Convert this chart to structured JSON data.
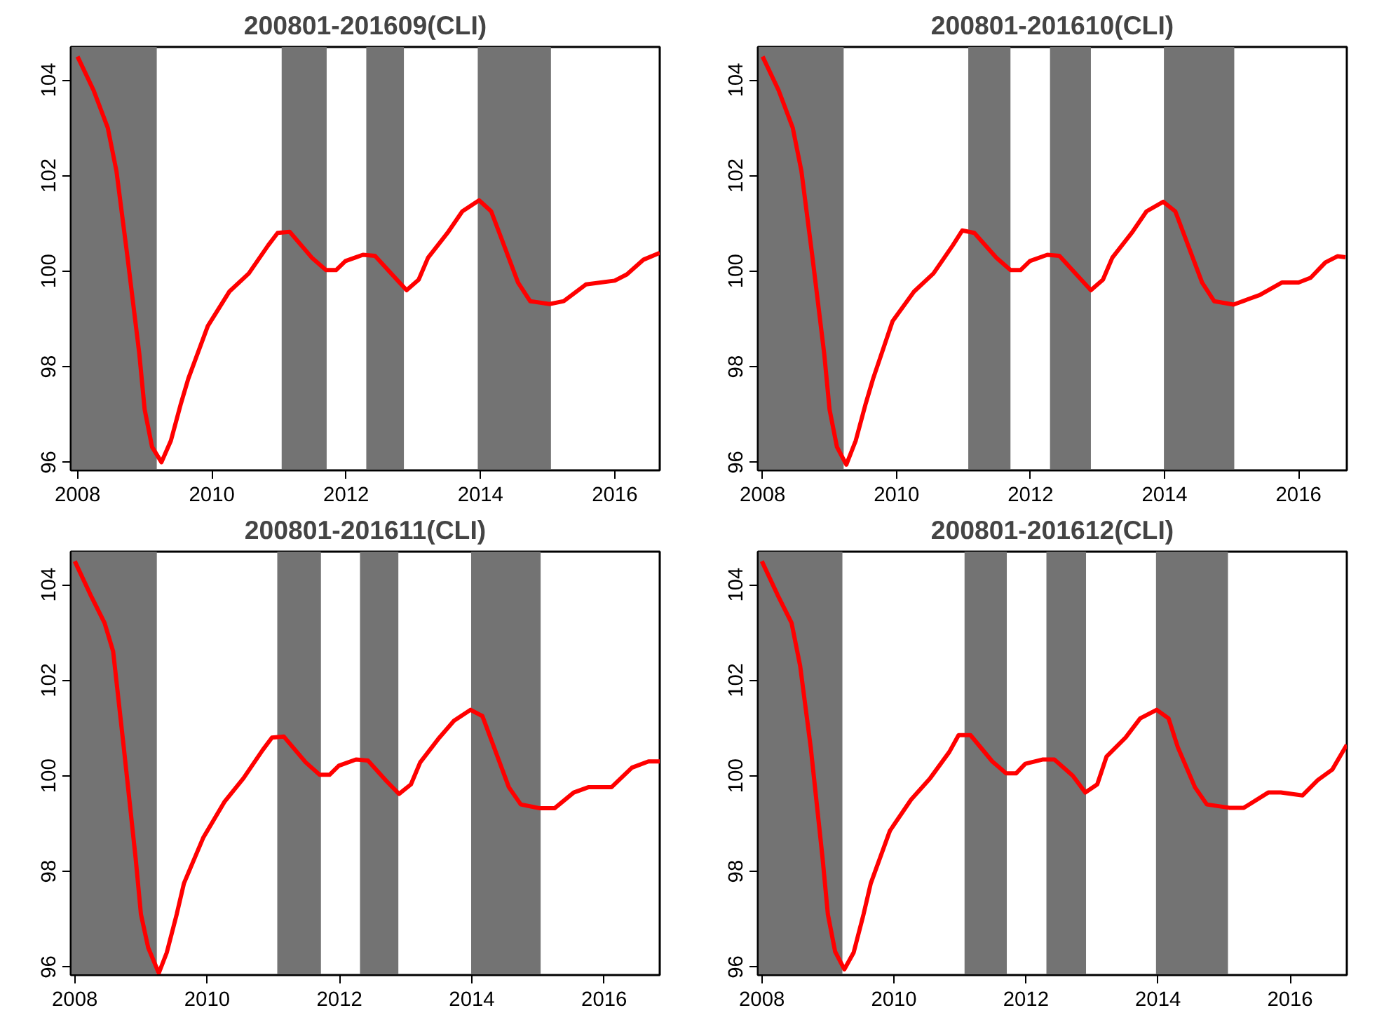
{
  "chart_data": [
    {
      "type": "line",
      "title": "200801-201609(CLI)",
      "xlim": [
        2007.9,
        2016.67
      ],
      "ylim": [
        95.83,
        104.69
      ],
      "xticks": [
        2008,
        2010,
        2012,
        2014,
        2016
      ],
      "yticks": [
        96,
        98,
        100,
        102,
        104
      ],
      "grid": false,
      "line_style": "solid",
      "bands": [
        {
          "axis": "x",
          "from": 2007.9,
          "to": 2009.18,
          "color": "#737373"
        },
        {
          "axis": "x",
          "from": 2011.04,
          "to": 2011.71,
          "color": "#737373"
        },
        {
          "axis": "x",
          "from": 2012.3,
          "to": 2012.86,
          "color": "#737373"
        },
        {
          "axis": "x",
          "from": 2013.96,
          "to": 2015.05,
          "color": "#737373"
        }
      ],
      "series": [
        {
          "color": "#ff0000",
          "x": [
            2008.0,
            2008.24,
            2008.45,
            2008.58,
            2008.74,
            2008.92,
            2009.0,
            2009.11,
            2009.25,
            2009.39,
            2009.54,
            2009.65,
            2009.94,
            2010.26,
            2010.55,
            2010.84,
            2010.98,
            2011.16,
            2011.49,
            2011.7,
            2011.85,
            2011.99,
            2012.25,
            2012.43,
            2012.71,
            2012.9,
            2013.08,
            2013.22,
            2013.51,
            2013.73,
            2013.98,
            2014.16,
            2014.3,
            2014.56,
            2014.74,
            2015.03,
            2015.24,
            2015.57,
            2016.0,
            2016.18,
            2016.43,
            2016.67
          ],
          "values": [
            104.49,
            103.78,
            103.0,
            102.09,
            100.34,
            98.27,
            97.1,
            96.32,
            96.0,
            96.45,
            97.23,
            97.75,
            98.85,
            99.57,
            99.95,
            100.54,
            100.8,
            100.82,
            100.28,
            100.02,
            100.02,
            100.21,
            100.34,
            100.32,
            99.89,
            99.6,
            99.82,
            100.28,
            100.8,
            101.25,
            101.48,
            101.25,
            100.73,
            99.76,
            99.37,
            99.31,
            99.37,
            99.72,
            99.8,
            99.93,
            100.24,
            100.38
          ]
        }
      ]
    },
    {
      "type": "line",
      "title": "200801-201610(CLI)",
      "xlim": [
        2007.93,
        2016.72
      ],
      "ylim": [
        95.83,
        104.69
      ],
      "xticks": [
        2008,
        2010,
        2012,
        2014,
        2016
      ],
      "yticks": [
        96,
        98,
        100,
        102,
        104
      ],
      "grid": false,
      "line_style": "solid",
      "bands": [
        {
          "axis": "x",
          "from": 2007.93,
          "to": 2009.21,
          "color": "#737373"
        },
        {
          "axis": "x",
          "from": 2011.07,
          "to": 2011.7,
          "color": "#737373"
        },
        {
          "axis": "x",
          "from": 2012.29,
          "to": 2012.9,
          "color": "#737373"
        },
        {
          "axis": "x",
          "from": 2013.99,
          "to": 2015.04,
          "color": "#737373"
        }
      ],
      "series": [
        {
          "color": "#ff0000",
          "x": [
            2008.0,
            2008.24,
            2008.45,
            2008.58,
            2008.74,
            2008.92,
            2009.0,
            2009.11,
            2009.25,
            2009.39,
            2009.54,
            2009.65,
            2009.94,
            2010.26,
            2010.55,
            2010.84,
            2010.98,
            2011.16,
            2011.49,
            2011.7,
            2011.85,
            2011.99,
            2012.25,
            2012.43,
            2012.71,
            2012.9,
            2013.08,
            2013.22,
            2013.51,
            2013.73,
            2013.98,
            2014.16,
            2014.3,
            2014.56,
            2014.74,
            2015.03,
            2015.42,
            2015.75,
            2016.0,
            2016.18,
            2016.4,
            2016.58,
            2016.7
          ],
          "values": [
            104.49,
            103.78,
            103.0,
            102.09,
            100.34,
            98.27,
            97.1,
            96.32,
            95.95,
            96.45,
            97.23,
            97.75,
            98.95,
            99.57,
            99.95,
            100.54,
            100.85,
            100.8,
            100.28,
            100.02,
            100.02,
            100.21,
            100.34,
            100.32,
            99.89,
            99.6,
            99.82,
            100.28,
            100.8,
            101.25,
            101.45,
            101.25,
            100.73,
            99.76,
            99.37,
            99.3,
            99.5,
            99.76,
            99.76,
            99.86,
            100.18,
            100.31,
            100.29
          ]
        }
      ]
    },
    {
      "type": "line",
      "title": "200801-201611(CLI)",
      "xlim": [
        2007.94,
        2016.84
      ],
      "ylim": [
        95.83,
        104.69
      ],
      "xticks": [
        2008,
        2010,
        2012,
        2014,
        2016
      ],
      "yticks": [
        96,
        98,
        100,
        102,
        104
      ],
      "grid": false,
      "line_style": "solid",
      "bands": [
        {
          "axis": "x",
          "from": 2007.94,
          "to": 2009.24,
          "color": "#737373"
        },
        {
          "axis": "x",
          "from": 2011.06,
          "to": 2011.72,
          "color": "#737373"
        },
        {
          "axis": "x",
          "from": 2012.31,
          "to": 2012.89,
          "color": "#737373"
        },
        {
          "axis": "x",
          "from": 2013.99,
          "to": 2015.04,
          "color": "#737373"
        }
      ],
      "series": [
        {
          "color": "#ff0000",
          "x": [
            2008.0,
            2008.24,
            2008.45,
            2008.58,
            2008.74,
            2008.92,
            2009.0,
            2009.11,
            2009.27,
            2009.39,
            2009.54,
            2009.65,
            2009.94,
            2010.26,
            2010.55,
            2010.84,
            2010.98,
            2011.16,
            2011.49,
            2011.7,
            2011.85,
            2011.99,
            2012.25,
            2012.43,
            2012.71,
            2012.9,
            2013.08,
            2013.22,
            2013.51,
            2013.73,
            2013.98,
            2014.16,
            2014.3,
            2014.56,
            2014.74,
            2015.03,
            2015.25,
            2015.54,
            2015.76,
            2016.11,
            2016.42,
            2016.67,
            2016.84
          ],
          "values": [
            104.49,
            103.78,
            103.2,
            102.6,
            100.6,
            98.27,
            97.1,
            96.4,
            95.87,
            96.3,
            97.1,
            97.75,
            98.7,
            99.45,
            99.95,
            100.54,
            100.8,
            100.82,
            100.28,
            100.02,
            100.02,
            100.21,
            100.34,
            100.32,
            99.89,
            99.62,
            99.82,
            100.28,
            100.8,
            101.15,
            101.38,
            101.25,
            100.73,
            99.76,
            99.4,
            99.32,
            99.32,
            99.65,
            99.76,
            99.76,
            100.17,
            100.3,
            100.3
          ]
        }
      ]
    },
    {
      "type": "line",
      "title": "200801-201612(CLI)",
      "xlim": [
        2007.94,
        2016.86
      ],
      "ylim": [
        95.83,
        104.69
      ],
      "xticks": [
        2008,
        2010,
        2012,
        2014,
        2016
      ],
      "yticks": [
        96,
        98,
        100,
        102,
        104
      ],
      "grid": false,
      "line_style": "solid",
      "bands": [
        {
          "axis": "x",
          "from": 2007.94,
          "to": 2009.22,
          "color": "#737373"
        },
        {
          "axis": "x",
          "from": 2011.07,
          "to": 2011.71,
          "color": "#737373"
        },
        {
          "axis": "x",
          "from": 2012.31,
          "to": 2012.91,
          "color": "#737373"
        },
        {
          "axis": "x",
          "from": 2013.97,
          "to": 2015.06,
          "color": "#737373"
        }
      ],
      "series": [
        {
          "color": "#ff0000",
          "x": [
            2008.0,
            2008.24,
            2008.45,
            2008.58,
            2008.74,
            2008.92,
            2009.0,
            2009.11,
            2009.25,
            2009.39,
            2009.54,
            2009.65,
            2009.94,
            2010.26,
            2010.55,
            2010.84,
            2010.98,
            2011.16,
            2011.49,
            2011.7,
            2011.85,
            2011.99,
            2012.25,
            2012.43,
            2012.71,
            2012.9,
            2013.08,
            2013.22,
            2013.51,
            2013.73,
            2013.98,
            2014.16,
            2014.3,
            2014.56,
            2014.74,
            2015.08,
            2015.3,
            2015.67,
            2015.86,
            2016.19,
            2016.42,
            2016.64,
            2016.86
          ],
          "values": [
            104.49,
            103.78,
            103.2,
            102.3,
            100.6,
            98.27,
            97.1,
            96.32,
            95.95,
            96.3,
            97.1,
            97.75,
            98.85,
            99.5,
            99.95,
            100.5,
            100.85,
            100.85,
            100.3,
            100.05,
            100.05,
            100.25,
            100.34,
            100.34,
            100.0,
            99.65,
            99.82,
            100.4,
            100.8,
            101.2,
            101.38,
            101.2,
            100.6,
            99.76,
            99.4,
            99.33,
            99.33,
            99.65,
            99.65,
            99.59,
            99.91,
            100.13,
            100.65
          ]
        }
      ]
    }
  ]
}
